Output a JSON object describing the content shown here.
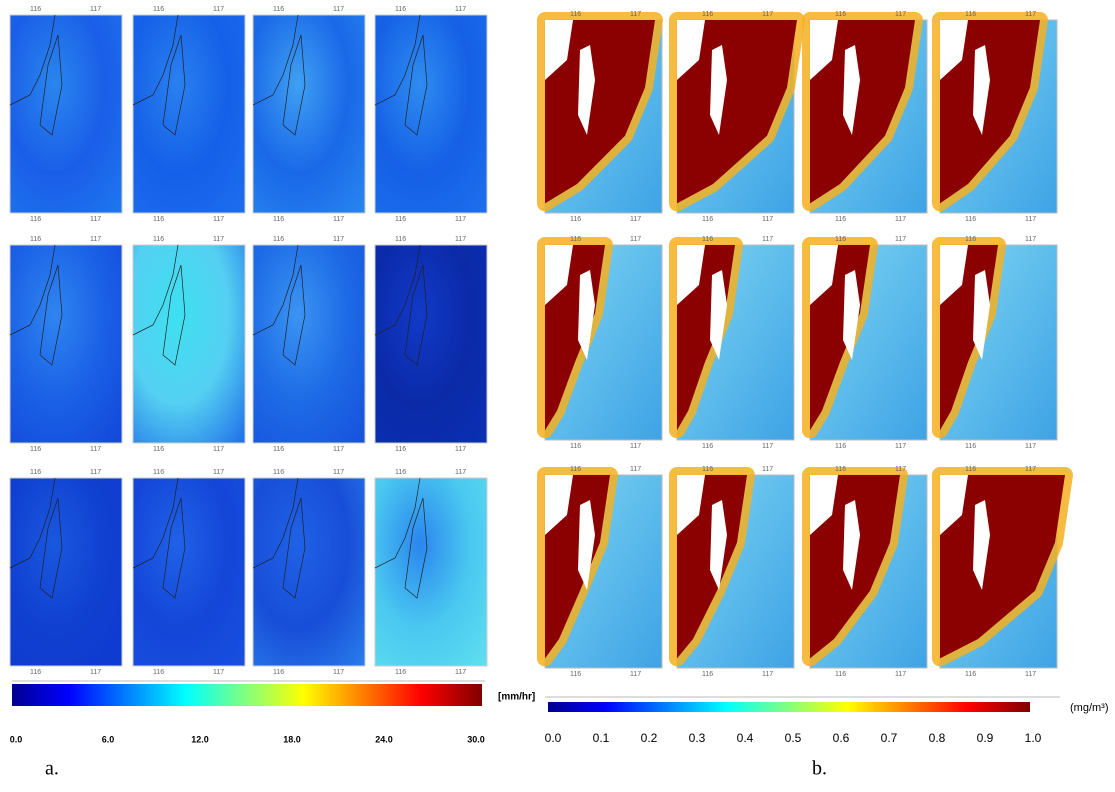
{
  "panel_a": {
    "caption": "a.",
    "unit": "[mm/hr]",
    "colorbar_labels": [
      "0.0",
      "6.0",
      "12.0",
      "18.0",
      "24.0",
      "30.0"
    ]
  },
  "panel_b": {
    "caption": "b.",
    "unit": "(mg/m³)",
    "colorbar_labels": [
      "0.0",
      "0.1",
      "0.2",
      "0.3",
      "0.4",
      "0.5",
      "0.6",
      "0.7",
      "0.8",
      "0.9",
      "1.0"
    ]
  },
  "map_tick_labels": [
    "116",
    "117"
  ]
}
